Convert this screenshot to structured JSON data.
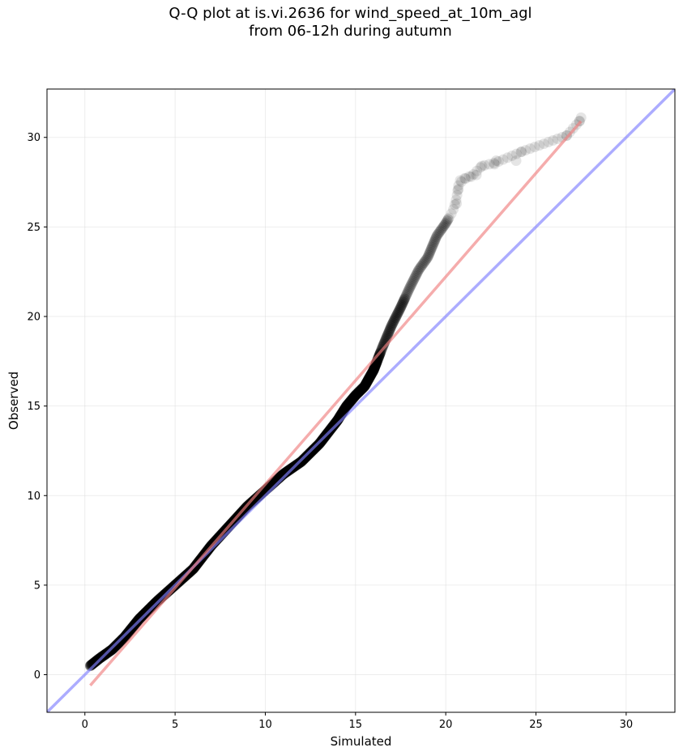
{
  "chart_data": {
    "type": "scatter",
    "title": "Q-Q plot at is.vi.2636 for wind_speed_at_10m_agl",
    "subtitle": "from 06-12h during autumn",
    "xlabel": "Simulated",
    "ylabel": "Observed",
    "xlim": [
      -2.1,
      32.7
    ],
    "ylim": [
      -2.1,
      32.7
    ],
    "xticks": [
      0,
      5,
      10,
      15,
      20,
      25,
      30
    ],
    "yticks": [
      0,
      5,
      10,
      15,
      20,
      25,
      30
    ],
    "grid": true,
    "colors": {
      "points": "#000000",
      "fit_line": "#f08080",
      "identity_line": "#8080ff"
    },
    "identity_line": {
      "from": [
        -2.1,
        -2.1
      ],
      "to": [
        32.7,
        32.7
      ]
    },
    "fit_line": {
      "from": [
        0.3,
        -0.6
      ],
      "to": [
        27.5,
        30.9
      ]
    },
    "quantile_path": [
      [
        0.3,
        0.5
      ],
      [
        0.8,
        0.9
      ],
      [
        1.5,
        1.4
      ],
      [
        2.2,
        2.1
      ],
      [
        3.0,
        3.1
      ],
      [
        4.0,
        4.1
      ],
      [
        5.0,
        5.0
      ],
      [
        6.0,
        5.9
      ],
      [
        7.0,
        7.2
      ],
      [
        8.0,
        8.3
      ],
      [
        9.0,
        9.4
      ],
      [
        10.0,
        10.3
      ],
      [
        11.0,
        11.2
      ],
      [
        12.0,
        11.9
      ],
      [
        13.0,
        12.9
      ],
      [
        14.0,
        14.2
      ],
      [
        14.5,
        15.0
      ],
      [
        15.0,
        15.6
      ],
      [
        15.5,
        16.1
      ],
      [
        16.0,
        17.0
      ],
      [
        16.5,
        18.3
      ],
      [
        17.0,
        19.5
      ],
      [
        17.5,
        20.5
      ],
      [
        18.0,
        21.6
      ],
      [
        18.5,
        22.6
      ],
      [
        19.0,
        23.3
      ],
      [
        19.5,
        24.5
      ],
      [
        20.0,
        25.2
      ],
      [
        20.4,
        25.9
      ],
      [
        20.6,
        26.6
      ],
      [
        20.7,
        27.3
      ],
      [
        21.0,
        27.7
      ],
      [
        21.5,
        27.9
      ],
      [
        22.0,
        28.4
      ],
      [
        22.8,
        28.6
      ],
      [
        24.2,
        29.2
      ],
      [
        26.7,
        30.1
      ],
      [
        27.5,
        31.0
      ]
    ],
    "tail_points": [
      [
        20.6,
        26.3
      ],
      [
        20.7,
        27.1
      ],
      [
        20.8,
        27.6
      ],
      [
        21.1,
        27.7
      ],
      [
        21.4,
        27.8
      ],
      [
        21.7,
        27.9
      ],
      [
        22.0,
        28.4
      ],
      [
        22.7,
        28.5
      ],
      [
        22.8,
        28.7
      ],
      [
        23.9,
        28.7
      ],
      [
        24.2,
        29.2
      ],
      [
        26.7,
        30.1
      ],
      [
        27.4,
        30.9
      ],
      [
        27.5,
        31.1
      ]
    ]
  }
}
